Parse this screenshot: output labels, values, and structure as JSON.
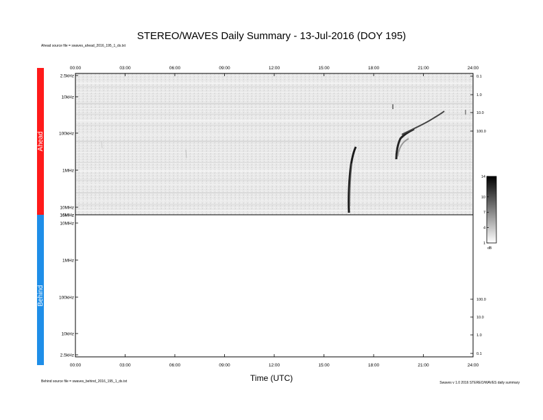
{
  "header": {
    "title": "STEREO/WAVES Daily Summary - 13-Jul-2016 (DOY 195)",
    "ahead_source": "Ahead source file = swaves_ahead_2016_195_1_ds.txt",
    "behind_source": "Behind source file = swaves_behind_2016_195_1_ds.txt",
    "version": "Swaves v 1.0 2016 STEREO/WAVES daily summary"
  },
  "panels": {
    "ahead_label": "Ahead",
    "behind_label": "Behind",
    "ahead_color": "#ff1a1a",
    "behind_color": "#1e8ee8"
  },
  "x_label": "Time (UTC)",
  "chart_data": {
    "type": "heatmap",
    "title": "STEREO/WAVES Daily Summary - 13-Jul-2016 (DOY 195)",
    "xlabel": "Time (UTC)",
    "ylabel": "",
    "x_ticks": [
      "00:00",
      "03:00",
      "06:00",
      "09:00",
      "12:00",
      "15:00",
      "18:00",
      "21:00",
      "24:00"
    ],
    "xlim": [
      0,
      24
    ],
    "ahead_freq_ticks": [
      "2.5kHz",
      "10kHz",
      "100kHz",
      "1MHz",
      "10MHz",
      "16MHz"
    ],
    "behind_freq_ticks": [
      "16MHz",
      "10MHz",
      "1MHz",
      "100kHz",
      "10kHz",
      "2.5kHz"
    ],
    "ahead_right_ticks": [
      "0.1",
      "1.0",
      "10.0",
      "100.0"
    ],
    "behind_right_ticks": [
      "100.0",
      "10.0",
      "1.0",
      "0.1"
    ],
    "colorbar": {
      "ticks": [
        "14",
        "10",
        "7",
        "4",
        "1"
      ],
      "unit": "dB",
      "range": [
        1,
        14
      ]
    },
    "bursts": [
      {
        "panel": "ahead",
        "start_time": 16.5,
        "end_time": 17.0,
        "freq_low": "10MHz",
        "freq_high": "100kHz"
      },
      {
        "panel": "ahead",
        "start_time": 19.3,
        "end_time": 21.8,
        "freq_low": "1MHz",
        "freq_high": "30kHz"
      }
    ],
    "behind_data": "none"
  }
}
